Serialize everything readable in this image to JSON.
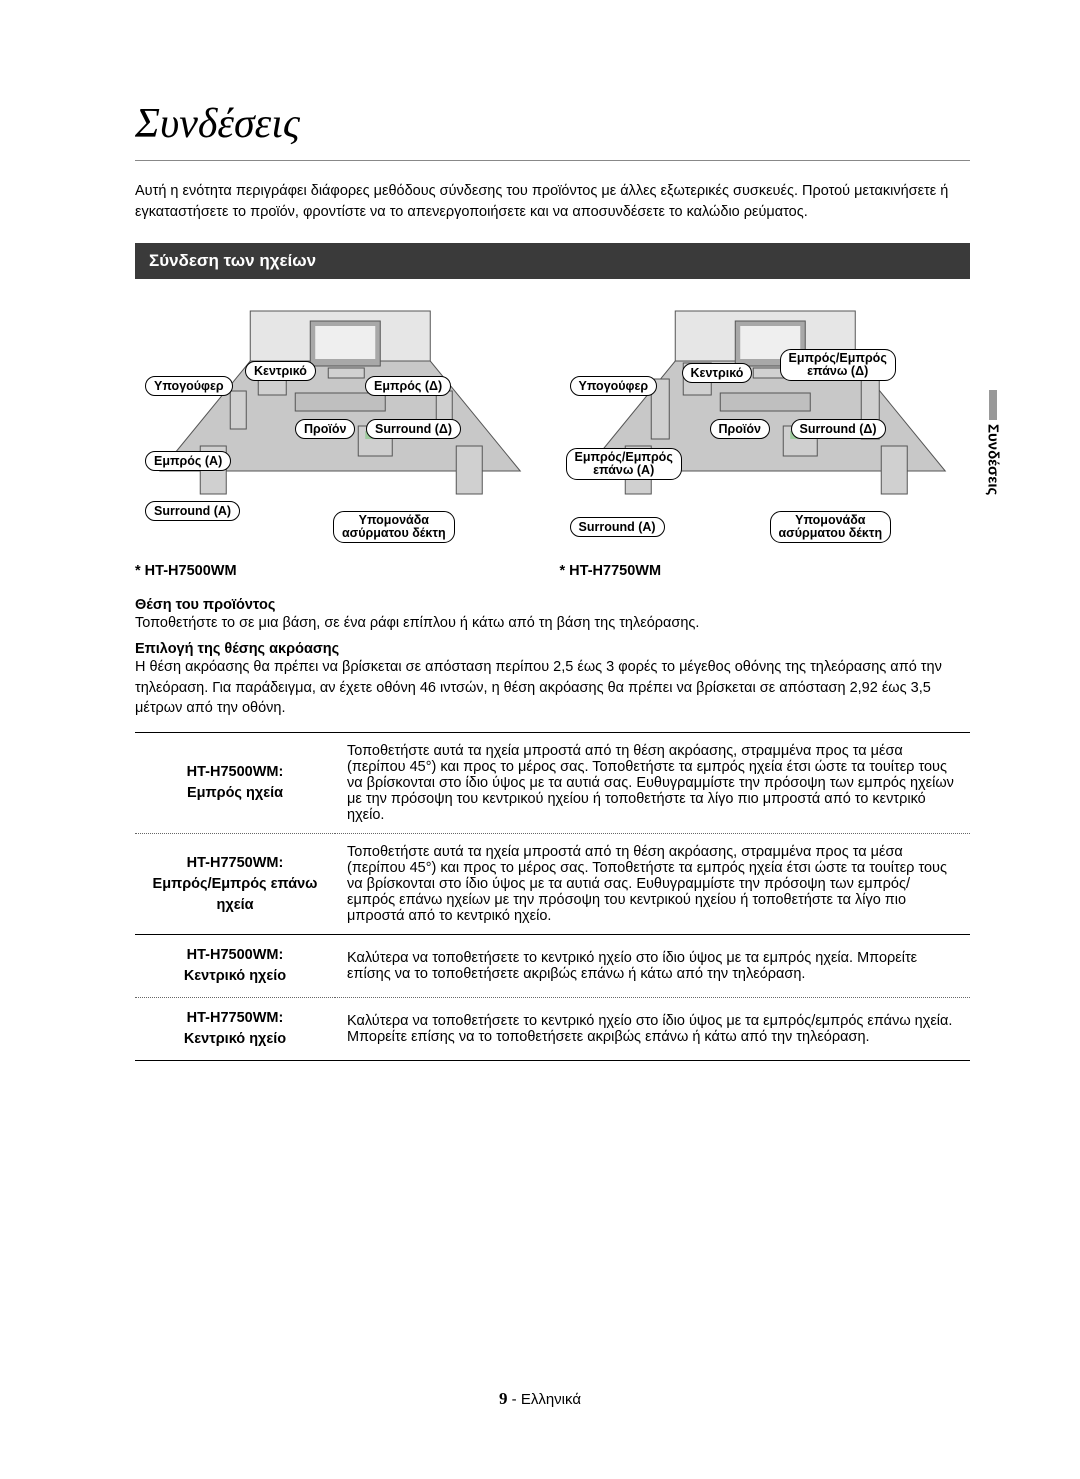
{
  "page_title": "Συνδέσεις",
  "intro_text": "Αυτή η ενότητα περιγράφει διάφορες μεθόδους σύνδεσης του προϊόντος με άλλες εξωτερικές συσκευές. Προτού μετακινήσετε ή εγκαταστήσετε το προϊόν, φροντίστε να το απενεργοποιήσετε και να αποσυνδέσετε το καλώδιο ρεύματος.",
  "section_heading": "Σύνδεση των ηχείων",
  "side_tab": "Συνδέσεις",
  "diagram_left": {
    "model": "* HT-H7500WM",
    "subwoofer": "Υπογούφερ",
    "center": "Κεντρικό",
    "front_r": "Εμπρός (Δ)",
    "product": "Προϊόν",
    "surr_r": "Surround (Δ)",
    "front_l": "Εμπρός (Α)",
    "surr_l": "Surround (Α)",
    "receiver": "Υπομονάδα\nασύρματου δέκτη"
  },
  "diagram_right": {
    "model": "* HT-H7750WM",
    "subwoofer": "Υπογούφερ",
    "center": "Κεντρικό",
    "front_topr": "Εμπρός/Εμπρός\nεπάνω (Δ)",
    "product": "Προϊόν",
    "surr_r": "Surround (Δ)",
    "front_topl": "Εμπρός/Εμπρός\nεπάνω (Α)",
    "surr_l": "Surround (Α)",
    "receiver": "Υπομονάδα\nασύρματου δέκτη"
  },
  "position_h": "Θέση του προϊόντος",
  "position_p": "Τοποθετήστε το σε μια βάση, σε ένα ράφι επίπλου ή κάτω από τη βάση της τηλεόρασης.",
  "listening_h": "Επιλογή της θέσης ακρόασης",
  "listening_p": "Η θέση ακρόασης θα πρέπει να βρίσκεται σε απόσταση περίπου 2,5 έως 3 φορές το μέγεθος οθόνης της τηλεόρασης από την τηλεόραση. Για παράδειγμα, αν έχετε οθόνη 46 ιντσών, η θέση ακρόασης θα πρέπει να βρίσκεται σε απόσταση 2,92 έως 3,5 μέτρων από την οθόνη.",
  "table_rows": [
    {
      "label": "HT-H7500WM:\nΕμπρός ηχεία",
      "text": "Τοποθετήστε αυτά τα ηχεία μπροστά από τη θέση ακρόασης, στραμμένα προς τα μέσα (περίπου 45°) και προς το μέρος σας. Τοποθετήστε τα εμπρός ηχεία έτσι ώστε τα τουίτερ τους να βρίσκονται στο ίδιο ύψος με τα αυτιά σας. Ευθυγραμμίστε την πρόσοψη των εμπρός ηχείων με την πρόσοψη του κεντρικού ηχείου ή τοποθετήστε τα λίγο πιο μπροστά από το κεντρικό ηχείο."
    },
    {
      "label": "HT-H7750WM:\nΕμπρός/Εμπρός επάνω\nηχεία",
      "text": "Τοποθετήστε αυτά τα ηχεία μπροστά από τη θέση ακρόασης, στραμμένα προς τα μέσα (περίπου 45°) και προς το μέρος σας. Τοποθετήστε τα εμπρός ηχεία έτσι ώστε τα τουίτερ τους να βρίσκονται στο ίδιο ύψος με τα αυτιά σας. Ευθυγραμμίστε την πρόσοψη των εμπρός/εμπρός επάνω ηχείων με την πρόσοψη του κεντρικού ηχείου ή τοποθετήστε τα λίγο πιο μπροστά από το κεντρικό ηχείο."
    },
    {
      "label": "HT-H7500WM:\nΚεντρικό ηχείο",
      "text": "Καλύτερα να τοποθετήσετε το κεντρικό ηχείο στο ίδιο ύψος με τα εμπρός ηχεία. Μπορείτε επίσης να το τοποθετήσετε ακριβώς επάνω ή κάτω από την τηλεόραση."
    },
    {
      "label": "HT-H7750WM:\nΚεντρικό ηχείο",
      "text": "Καλύτερα να τοποθετήσετε το κεντρικό ηχείο στο ίδιο ύψος με τα εμπρός/εμπρός επάνω ηχεία. Μπορείτε επίσης να το τοποθετήσετε ακριβώς επάνω ή κάτω από την τηλεόραση."
    }
  ],
  "page_number": "9",
  "page_lang": "- Ελληνικά",
  "diagram_style": {
    "floor_fill": "#c8c8c8",
    "wall_fill": "#e6e6e6",
    "tv_fill": "#a8a8a8",
    "speaker_fill": "#d0d0d0",
    "stroke": "#555"
  }
}
